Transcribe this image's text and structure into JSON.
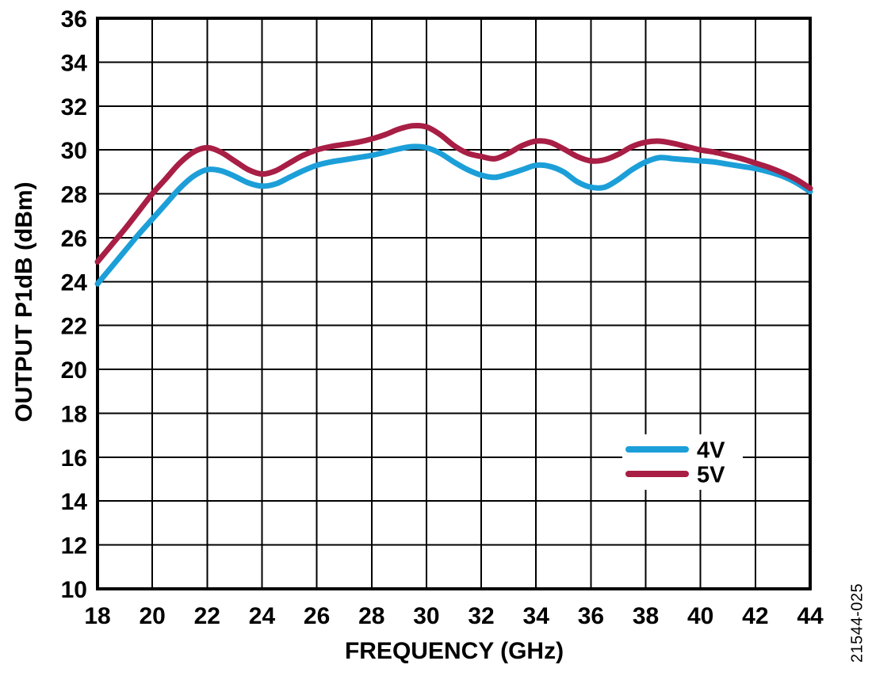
{
  "figure": {
    "watermark": "21544-025",
    "background_color": "#ffffff",
    "axis_color": "#000000",
    "text_color": "#000000"
  },
  "chart_data": {
    "type": "line",
    "title": "",
    "xlabel": "FREQUENCY (GHz)",
    "ylabel": "OUTPUT P1dB (dBm)",
    "xlim": [
      18,
      44
    ],
    "ylim": [
      10,
      36
    ],
    "grid": true,
    "x_ticks": [
      18,
      20,
      22,
      24,
      26,
      28,
      30,
      32,
      34,
      36,
      38,
      40,
      42,
      44
    ],
    "x_tick_labels": [
      "18",
      "20",
      "22",
      "24",
      "26",
      "28",
      "30",
      "32",
      "34",
      "36",
      "38",
      "40",
      "42",
      "44"
    ],
    "y_ticks": [
      36,
      34,
      32,
      30,
      28,
      26,
      24,
      22,
      20,
      18,
      16,
      14,
      12,
      10
    ],
    "y_tick_labels": [
      "36",
      "34",
      "32",
      "30",
      "28",
      "26",
      "24",
      "22",
      "20",
      "18",
      "16",
      "14",
      "12",
      "10"
    ],
    "legend_position": "inside lower right",
    "x": [
      18,
      18.5,
      19,
      19.5,
      20,
      20.5,
      21,
      21.5,
      22,
      22.5,
      23,
      23.5,
      24,
      24.5,
      25,
      25.5,
      26,
      26.5,
      27,
      27.5,
      28,
      28.5,
      29,
      29.5,
      30,
      30.5,
      31,
      31.5,
      32,
      32.5,
      33,
      33.5,
      34,
      34.5,
      35,
      35.5,
      36,
      36.5,
      37,
      37.5,
      38,
      38.5,
      39,
      39.5,
      40,
      40.5,
      41,
      41.5,
      42,
      42.5,
      43,
      43.5,
      44
    ],
    "series": [
      {
        "name": "4V",
        "color": "#1C9FD8",
        "values": [
          23.9,
          24.65,
          25.4,
          26.15,
          26.85,
          27.55,
          28.25,
          28.8,
          29.1,
          29.05,
          28.8,
          28.5,
          28.35,
          28.45,
          28.75,
          29.05,
          29.3,
          29.45,
          29.55,
          29.65,
          29.75,
          29.9,
          30.05,
          30.15,
          30.1,
          29.85,
          29.45,
          29.1,
          28.85,
          28.75,
          28.9,
          29.1,
          29.3,
          29.25,
          29.0,
          28.55,
          28.3,
          28.3,
          28.65,
          29.1,
          29.45,
          29.65,
          29.6,
          29.55,
          29.5,
          29.45,
          29.35,
          29.25,
          29.15,
          29.0,
          28.8,
          28.5,
          28.1
        ]
      },
      {
        "name": "5V",
        "color": "#A81E45",
        "values": [
          24.9,
          25.65,
          26.4,
          27.2,
          28.0,
          28.7,
          29.4,
          29.9,
          30.1,
          29.9,
          29.5,
          29.1,
          28.9,
          29.05,
          29.4,
          29.75,
          30.0,
          30.15,
          30.25,
          30.35,
          30.5,
          30.7,
          30.95,
          31.1,
          31.05,
          30.7,
          30.2,
          29.85,
          29.7,
          29.6,
          29.85,
          30.2,
          30.4,
          30.35,
          30.05,
          29.7,
          29.5,
          29.55,
          29.8,
          30.15,
          30.35,
          30.4,
          30.3,
          30.15,
          30.0,
          29.9,
          29.75,
          29.6,
          29.4,
          29.2,
          28.95,
          28.65,
          28.25
        ]
      }
    ]
  }
}
